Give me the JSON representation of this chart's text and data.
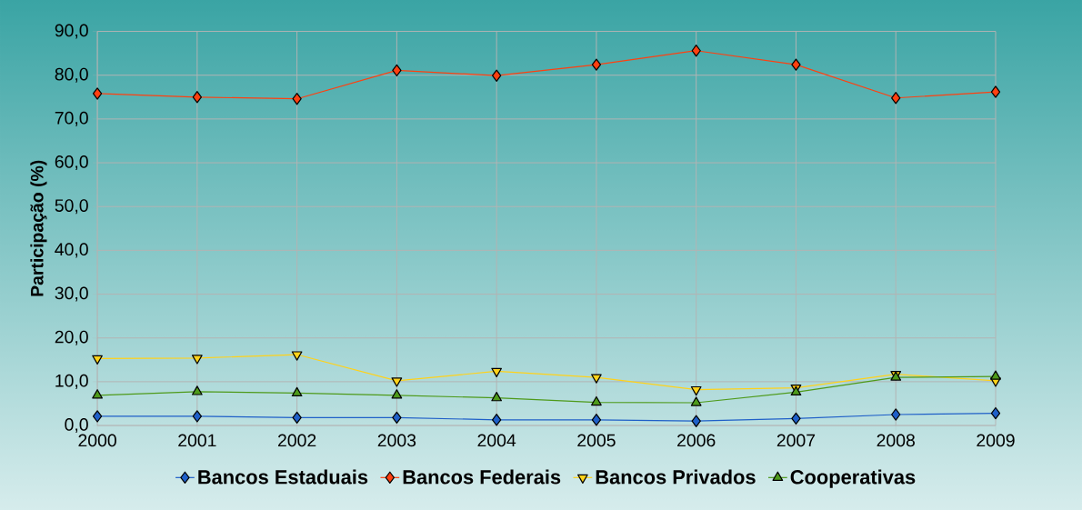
{
  "chart_data": {
    "type": "line",
    "ylabel": "Participação (%)",
    "categories": [
      "2000",
      "2001",
      "2002",
      "2003",
      "2004",
      "2005",
      "2006",
      "2007",
      "2008",
      "2009"
    ],
    "series": [
      {
        "name": "Bancos Estaduais",
        "color": "#1f5fc8",
        "marker": "diamond",
        "values": [
          2.1,
          2.1,
          1.8,
          1.8,
          1.3,
          1.3,
          1.0,
          1.6,
          2.5,
          2.8
        ]
      },
      {
        "name": "Bancos Federais",
        "color": "#ff4010",
        "marker": "diamond",
        "values": [
          75.8,
          75.0,
          74.6,
          81.1,
          79.9,
          82.4,
          85.6,
          82.4,
          74.8,
          76.2
        ]
      },
      {
        "name": "Bancos Privados",
        "color": "#ffd21a",
        "marker": "triangle_down",
        "values": [
          15.3,
          15.4,
          16.2,
          10.2,
          12.4,
          11.0,
          8.2,
          8.6,
          11.7,
          10.2
        ]
      },
      {
        "name": "Cooperativas",
        "color": "#4e9a1a",
        "marker": "triangle",
        "values": [
          6.9,
          7.7,
          7.4,
          6.9,
          6.3,
          5.3,
          5.2,
          7.6,
          11.0,
          11.2
        ]
      }
    ],
    "ylim": [
      0,
      90
    ],
    "yticks": [
      {
        "value": 0,
        "label": "0,0"
      },
      {
        "value": 10,
        "label": "10,0"
      },
      {
        "value": 20,
        "label": "20,0"
      },
      {
        "value": 30,
        "label": "30,0"
      },
      {
        "value": 40,
        "label": "40,0"
      },
      {
        "value": 50,
        "label": "50,0"
      },
      {
        "value": 60,
        "label": "60,0"
      },
      {
        "value": 70,
        "label": "70,0"
      },
      {
        "value": 80,
        "label": "80,0"
      },
      {
        "value": 90,
        "label": "90,0"
      }
    ],
    "grid": true,
    "legend": "bottom",
    "line_style": "solid"
  }
}
